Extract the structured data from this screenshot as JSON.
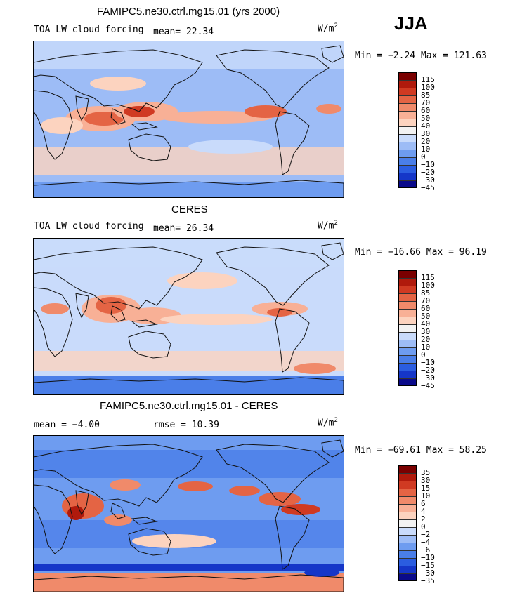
{
  "season": "JJA",
  "colors": {
    "land": "#111111",
    "scale_main": [
      "#0a0a8a",
      "#1536c8",
      "#2b5de0",
      "#4a7ee8",
      "#6e9cf0",
      "#9dbcf6",
      "#c9dbfb",
      "#f2f2f2",
      "#fcd3bf",
      "#f8b096",
      "#f08a6a",
      "#e46444",
      "#d03a22",
      "#b01a0c",
      "#7a0000"
    ],
    "scale_diff": [
      "#0a0a8a",
      "#1536c8",
      "#2b5de0",
      "#4a7ee8",
      "#6e9cf0",
      "#9dbcf6",
      "#c9dbfb",
      "#f2f2f2",
      "#fcd3bf",
      "#f8b096",
      "#f08a6a",
      "#e46444",
      "#d03a22",
      "#b01a0c",
      "#7a0000"
    ]
  },
  "chart_data": [
    {
      "type": "heatmap",
      "title": "FAMIPC5.ne30.ctrl.mg15.01 (yrs 2000)",
      "variable": "TOA LW cloud forcing",
      "mean_label": "mean=",
      "mean": "22.34",
      "units": "W/m",
      "units_sup": "2",
      "min_label": "Min =",
      "min": "−2.24",
      "max_label": "Max =",
      "max": "121.63",
      "colorbar_levels": [
        "115",
        "100",
        "85",
        "70",
        "60",
        "50",
        "40",
        "30",
        "20",
        "10",
        "0",
        "−10",
        "−20",
        "−30",
        "−45"
      ]
    },
    {
      "type": "heatmap",
      "title": "CERES",
      "variable": "TOA LW cloud forcing",
      "mean_label": "mean=",
      "mean": "26.34",
      "units": "W/m",
      "units_sup": "2",
      "min_label": "Min =",
      "min": "−16.66",
      "max_label": "Max =",
      "max": "96.19",
      "colorbar_levels": [
        "115",
        "100",
        "85",
        "70",
        "60",
        "50",
        "40",
        "30",
        "20",
        "10",
        "0",
        "−10",
        "−20",
        "−30",
        "−45"
      ]
    },
    {
      "type": "heatmap",
      "title": "FAMIPC5.ne30.ctrl.mg15.01 - CERES",
      "mean_label": "mean =",
      "mean": "−4.00",
      "rmse_label": "rmse =",
      "rmse": "10.39",
      "units": "W/m",
      "units_sup": "2",
      "min_label": "Min =",
      "min": "−69.61",
      "max_label": "Max =",
      "max": "58.25",
      "colorbar_levels": [
        "35",
        "30",
        "15",
        "10",
        "6",
        "4",
        "2",
        "0",
        "−2",
        "−4",
        "−6",
        "−10",
        "−15",
        "−30",
        "−35"
      ]
    }
  ]
}
